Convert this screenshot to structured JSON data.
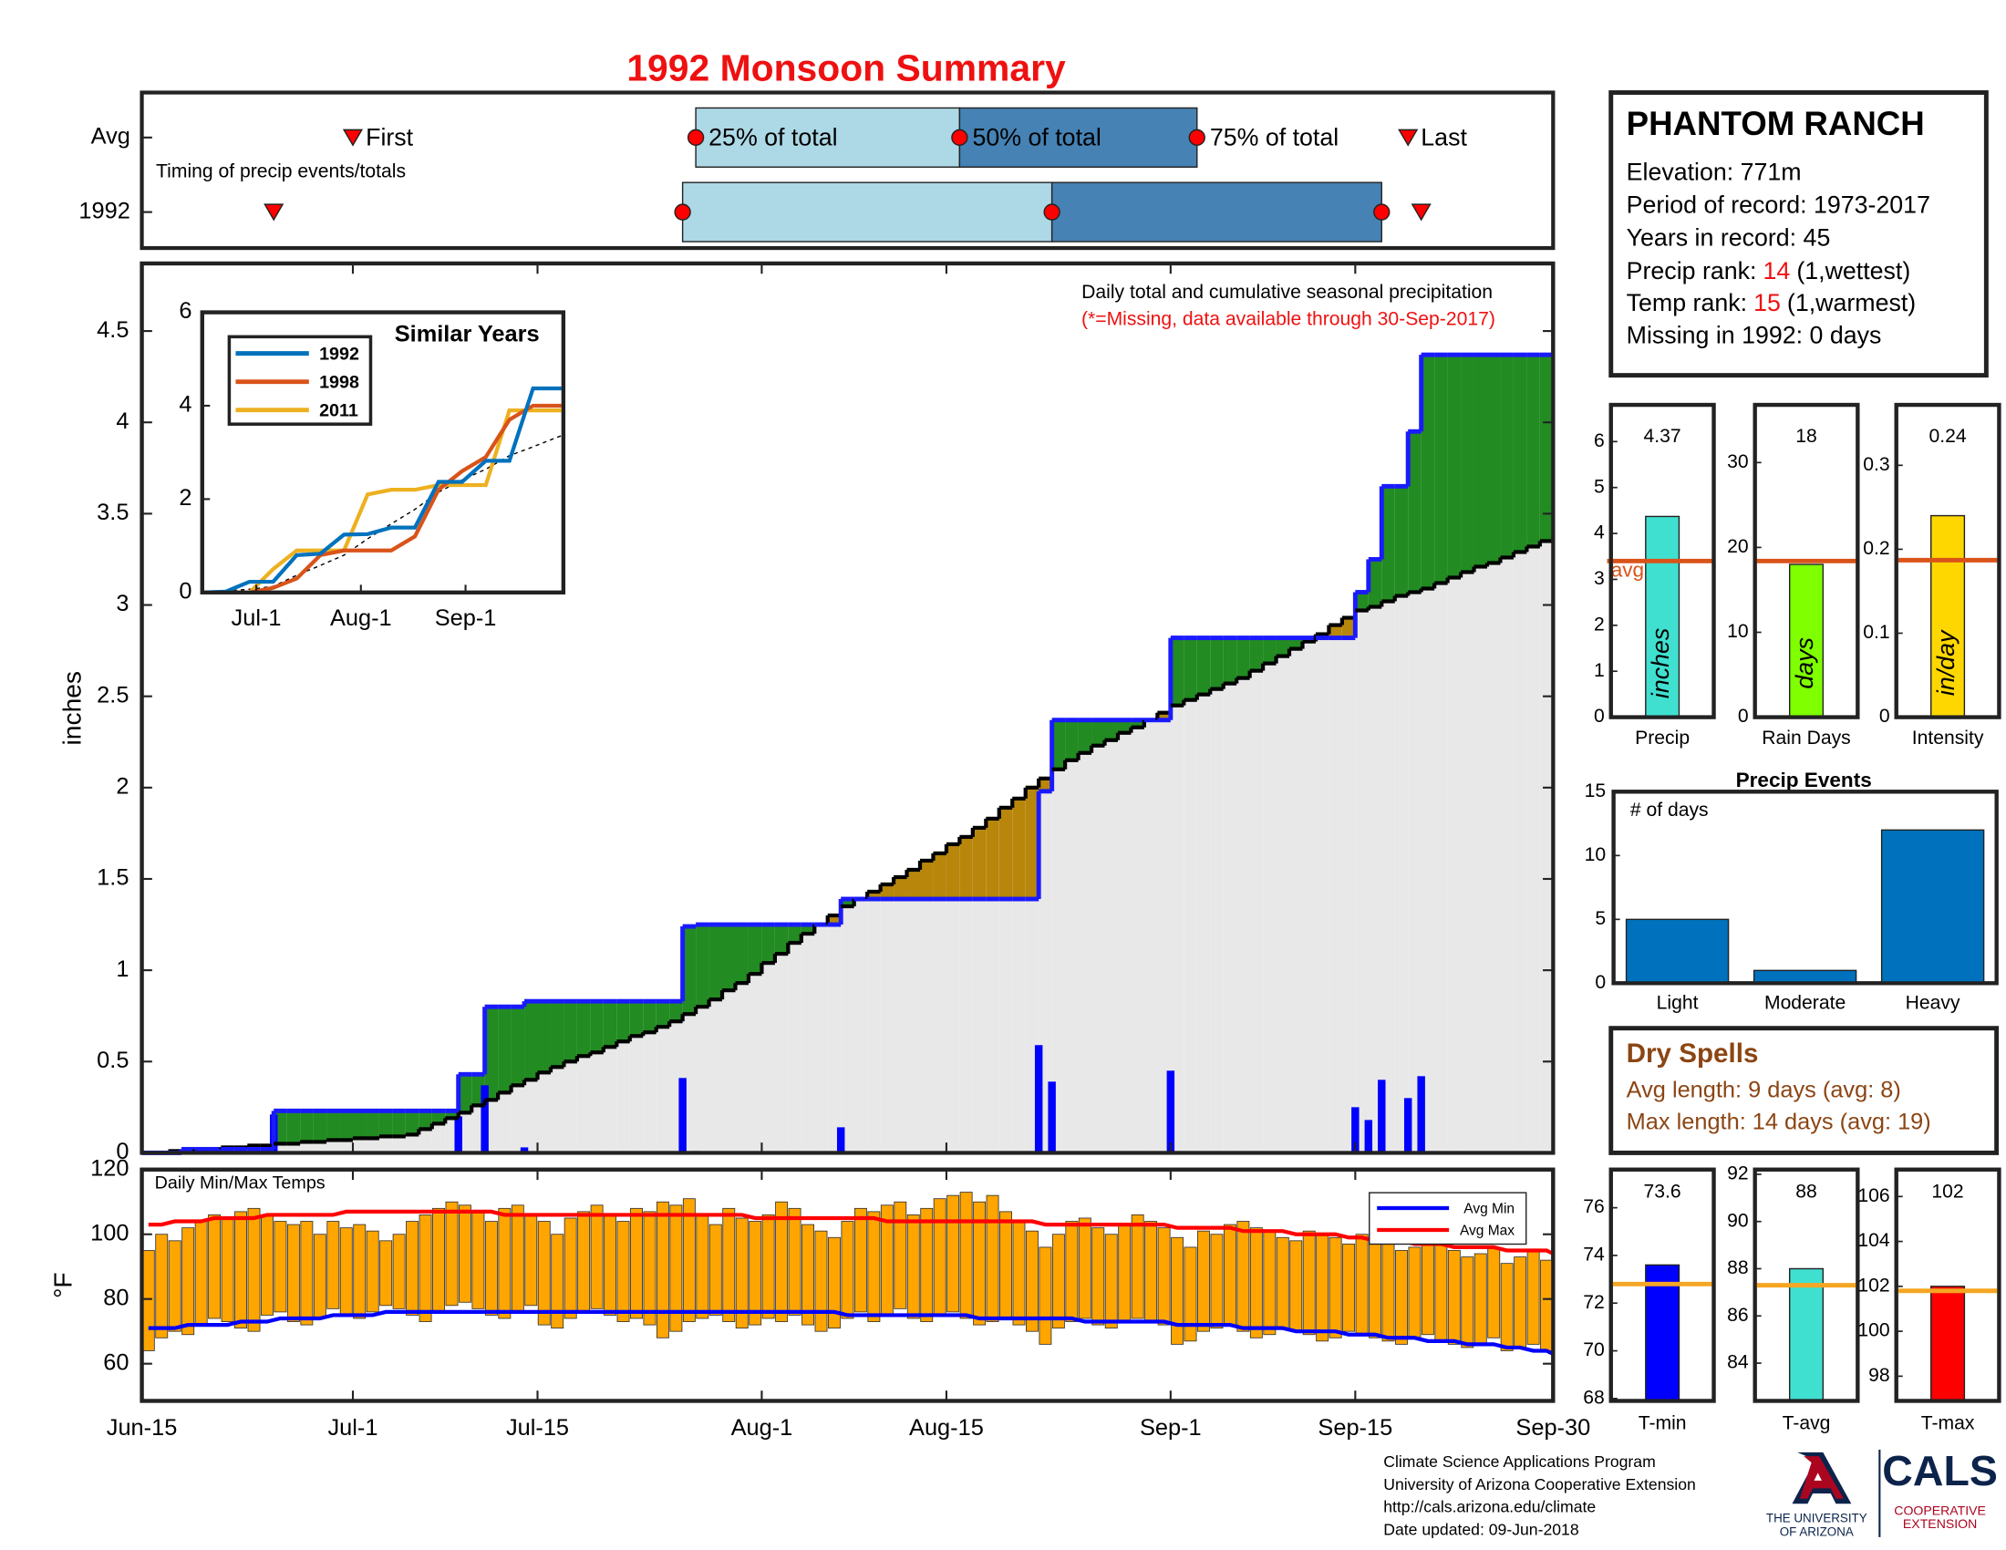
{
  "title": "1992 Monsoon Summary",
  "chart_data": [
    {
      "type": "timing",
      "note": "Timing of precip events/totals",
      "rows": [
        "Avg",
        "1992"
      ],
      "markers": [
        "First",
        "25% of total",
        "50% of total",
        "75% of total",
        "Last"
      ],
      "dates": [
        [
          "Jul-1",
          "Jul-27",
          "Aug-16",
          "Sep-3",
          "Sep-19"
        ],
        [
          "Jun-25",
          "Jul-26",
          "Aug-23",
          "Sep-17",
          "Sep-20"
        ]
      ],
      "colors": [
        "#add8e6",
        "#4682b4"
      ],
      "marker_color": "#ff0000"
    },
    {
      "type": "step-area",
      "ylabel": "inches",
      "notes": [
        "Daily total and cumulative seasonal precipitation",
        "(*=Missing, data available through 30-Sep-2017)"
      ],
      "x": [
        "Jun-15",
        "Jun-16",
        "Jun-17",
        "Jun-18",
        "Jun-19",
        "Jun-20",
        "Jun-21",
        "Jun-22",
        "Jun-23",
        "Jun-24",
        "Jun-25",
        "Jun-26",
        "Jun-27",
        "Jun-28",
        "Jun-29",
        "Jun-30",
        "Jul-1",
        "Jul-2",
        "Jul-3",
        "Jul-4",
        "Jul-5",
        "Jul-6",
        "Jul-7",
        "Jul-8",
        "Jul-9",
        "Jul-10",
        "Jul-11",
        "Jul-12",
        "Jul-13",
        "Jul-14",
        "Jul-15",
        "Jul-16",
        "Jul-17",
        "Jul-18",
        "Jul-19",
        "Jul-20",
        "Jul-21",
        "Jul-22",
        "Jul-23",
        "Jul-24",
        "Jul-25",
        "Jul-26",
        "Jul-27",
        "Jul-28",
        "Jul-29",
        "Jul-30",
        "Jul-31",
        "Aug-1",
        "Aug-2",
        "Aug-3",
        "Aug-4",
        "Aug-5",
        "Aug-6",
        "Aug-7",
        "Aug-8",
        "Aug-9",
        "Aug-10",
        "Aug-11",
        "Aug-12",
        "Aug-13",
        "Aug-14",
        "Aug-15",
        "Aug-16",
        "Aug-17",
        "Aug-18",
        "Aug-19",
        "Aug-20",
        "Aug-21",
        "Aug-22",
        "Aug-23",
        "Aug-24",
        "Aug-25",
        "Aug-26",
        "Aug-27",
        "Aug-28",
        "Aug-29",
        "Aug-30",
        "Aug-31",
        "Sep-1",
        "Sep-2",
        "Sep-3",
        "Sep-4",
        "Sep-5",
        "Sep-6",
        "Sep-7",
        "Sep-8",
        "Sep-9",
        "Sep-10",
        "Sep-11",
        "Sep-12",
        "Sep-13",
        "Sep-14",
        "Sep-15",
        "Sep-16",
        "Sep-17",
        "Sep-18",
        "Sep-19",
        "Sep-20",
        "Sep-21",
        "Sep-22",
        "Sep-23",
        "Sep-24",
        "Sep-25",
        "Sep-26",
        "Sep-27",
        "Sep-28",
        "Sep-29",
        "Sep-30"
      ],
      "daily": {
        "color": "#0000ff",
        "values": [
          0,
          0,
          0,
          0.02,
          0,
          0,
          0,
          0,
          0,
          0,
          0.21,
          0,
          0,
          0,
          0,
          0,
          0,
          0,
          0,
          0,
          0,
          0,
          0,
          0,
          0.2,
          0,
          0.37,
          0,
          0,
          0.03,
          0,
          0,
          0,
          0,
          0,
          0,
          0,
          0,
          0,
          0,
          0,
          0.41,
          0.01,
          0,
          0,
          0,
          0,
          0,
          0,
          0,
          0,
          0,
          0,
          0.14,
          0,
          0,
          0,
          0,
          0,
          0,
          0,
          0,
          0,
          0,
          0,
          0,
          0,
          0,
          0.59,
          0.39,
          0,
          0,
          0,
          0,
          0,
          0,
          0,
          0,
          0.45,
          0,
          0,
          0,
          0,
          0,
          0,
          0,
          0,
          0,
          0,
          0,
          0,
          0,
          0.25,
          0.18,
          0.4,
          0,
          0.3,
          0.42,
          0,
          0,
          0,
          0,
          0,
          0,
          0,
          0,
          0,
          0
        ]
      },
      "average": {
        "color": "#000000",
        "values": [
          0,
          0,
          0.01,
          0.01,
          0.02,
          0.02,
          0.03,
          0.03,
          0.04,
          0.04,
          0.05,
          0.05,
          0.06,
          0.06,
          0.07,
          0.07,
          0.08,
          0.08,
          0.09,
          0.09,
          0.1,
          0.13,
          0.16,
          0.19,
          0.22,
          0.26,
          0.29,
          0.33,
          0.37,
          0.4,
          0.44,
          0.47,
          0.5,
          0.53,
          0.55,
          0.58,
          0.61,
          0.64,
          0.66,
          0.69,
          0.72,
          0.76,
          0.8,
          0.84,
          0.89,
          0.93,
          0.98,
          1.04,
          1.09,
          1.15,
          1.2,
          1.25,
          1.3,
          1.35,
          1.39,
          1.43,
          1.47,
          1.51,
          1.55,
          1.6,
          1.64,
          1.69,
          1.73,
          1.78,
          1.83,
          1.89,
          1.94,
          2,
          2.05,
          2.1,
          2.15,
          2.19,
          2.23,
          2.26,
          2.3,
          2.33,
          2.37,
          2.41,
          2.45,
          2.48,
          2.51,
          2.54,
          2.57,
          2.6,
          2.64,
          2.68,
          2.72,
          2.76,
          2.8,
          2.84,
          2.89,
          2.93,
          2.97,
          2.99,
          3.02,
          3.05,
          3.07,
          3.09,
          3.12,
          3.15,
          3.18,
          3.21,
          3.23,
          3.26,
          3.29,
          3.32,
          3.35,
          3.37
        ]
      },
      "cumulative_color": "#1a1aff",
      "above_color": "#228b22",
      "below_color": "#b8860b",
      "base_color": "#e8e8e8",
      "ylim": [
        0,
        4.87
      ],
      "yticks": [
        0,
        0.5,
        1,
        1.5,
        2,
        2.5,
        3,
        3.5,
        4,
        4.5
      ],
      "xticks": [
        "Jun-15",
        "Jul-1",
        "Jul-15",
        "Aug-1",
        "Aug-15",
        "Sep-1",
        "Sep-15",
        "Sep-30"
      ],
      "inset": {
        "type": "line",
        "title": "Similar Years",
        "x": [
          "Jun-15",
          "Jun-22",
          "Jun-29",
          "Jul-6",
          "Jul-13",
          "Jul-20",
          "Jul-27",
          "Aug-3",
          "Aug-10",
          "Aug-17",
          "Aug-24",
          "Aug-31",
          "Sep-7",
          "Sep-14",
          "Sep-21",
          "Sep-28",
          "Sep-30"
        ],
        "series": [
          {
            "name": "1992",
            "color": "#0072bd",
            "values": [
              0,
              0.02,
              0.23,
              0.23,
              0.8,
              0.83,
              1.24,
              1.25,
              1.39,
              1.39,
              2.37,
              2.37,
              2.82,
              2.82,
              4.37,
              4.37,
              4.37
            ]
          },
          {
            "name": "1998",
            "color": "#d95319",
            "values": [
              0,
              0,
              0,
              0.1,
              0.3,
              0.8,
              0.9,
              0.9,
              0.9,
              1.2,
              2.2,
              2.6,
              2.9,
              3.7,
              4,
              4,
              4
            ]
          },
          {
            "name": "2011",
            "color": "#edb120",
            "values": [
              0,
              0,
              0,
              0.5,
              0.9,
              0.9,
              0.9,
              2.1,
              2.2,
              2.2,
              2.3,
              2.3,
              2.3,
              3.9,
              3.9,
              3.9,
              3.9
            ]
          }
        ],
        "reference": {
          "color": "#000000",
          "values": [
            0,
            0.03,
            0.07,
            0.13,
            0.37,
            0.58,
            0.8,
            1.15,
            1.47,
            1.78,
            2.15,
            2.41,
            2.64,
            2.93,
            3.12,
            3.32,
            3.37
          ]
        },
        "ylim": [
          0,
          6
        ],
        "yticks": [
          0,
          2,
          4,
          6
        ],
        "xticks": [
          "Jul-1",
          "Aug-1",
          "Sep-1"
        ]
      }
    },
    {
      "type": "range-bar",
      "note": "Daily Min/Max Temps",
      "ylabel": "°F",
      "bar_color": "#ffa500",
      "max": {
        "values": [
          95,
          100,
          98,
          102,
          104,
          106,
          105,
          107,
          108,
          106,
          104,
          103,
          104,
          100,
          104,
          102,
          103,
          101,
          98,
          100,
          104,
          106,
          108,
          110,
          109,
          107,
          104,
          108,
          109,
          106,
          104,
          100,
          105,
          107,
          109,
          106,
          104,
          108,
          107,
          110,
          109,
          111,
          106,
          103,
          108,
          105,
          104,
          106,
          110,
          108,
          103,
          101,
          99,
          104,
          108,
          107,
          109,
          110,
          106,
          108,
          111,
          112,
          113,
          110,
          112,
          107,
          104,
          101,
          96,
          100,
          104,
          105,
          102,
          100,
          103,
          106,
          104,
          102,
          99,
          96,
          101,
          100,
          103,
          104,
          102,
          101,
          99,
          98,
          101,
          100,
          99,
          97,
          100,
          98,
          97,
          95,
          96,
          99,
          97,
          95,
          93,
          94,
          96,
          91,
          93,
          95,
          92,
          94
        ]
      },
      "min": {
        "values": [
          64,
          68,
          70,
          69,
          72,
          74,
          73,
          71,
          70,
          75,
          76,
          73,
          72,
          74,
          77,
          75,
          74,
          76,
          78,
          77,
          75,
          73,
          76,
          78,
          79,
          77,
          75,
          74,
          76,
          78,
          72,
          71,
          74,
          76,
          77,
          75,
          73,
          74,
          72,
          68,
          70,
          73,
          74,
          75,
          73,
          71,
          72,
          74,
          73,
          75,
          72,
          70,
          71,
          74,
          76,
          73,
          75,
          77,
          74,
          73,
          75,
          76,
          74,
          72,
          73,
          74,
          72,
          70,
          66,
          71,
          73,
          74,
          72,
          71,
          73,
          74,
          73,
          72,
          66,
          67,
          70,
          71,
          72,
          70,
          68,
          69,
          71,
          70,
          69,
          67,
          68,
          70,
          69,
          68,
          67,
          66,
          68,
          69,
          67,
          66,
          65,
          66,
          68,
          64,
          65,
          66,
          64,
          67
        ]
      },
      "series": [
        {
          "name": "Avg Min",
          "color": "#0000ff",
          "values": [
            71,
            71,
            71,
            72,
            72,
            72,
            72,
            73,
            73,
            73,
            74,
            74,
            74,
            74,
            75,
            75,
            75,
            75,
            76,
            76,
            76,
            76,
            76,
            76,
            76,
            76,
            76,
            76,
            76,
            76,
            76,
            76,
            76,
            76,
            76,
            76,
            76,
            76,
            76,
            76,
            76,
            76,
            76,
            76,
            76,
            76,
            76,
            76,
            76,
            76,
            76,
            76,
            76,
            75,
            75,
            75,
            75,
            75,
            75,
            75,
            75,
            75,
            75,
            74,
            74,
            74,
            74,
            74,
            74,
            74,
            74,
            73,
            73,
            73,
            73,
            73,
            73,
            73,
            72,
            72,
            72,
            72,
            72,
            71,
            71,
            71,
            71,
            70,
            70,
            70,
            70,
            69,
            69,
            69,
            68,
            68,
            68,
            67,
            67,
            67,
            66,
            66,
            66,
            65,
            65,
            64,
            64,
            63
          ]
        },
        {
          "name": "Avg Max",
          "color": "#ff0000",
          "values": [
            103,
            103,
            104,
            104,
            104,
            105,
            105,
            105,
            105,
            106,
            106,
            106,
            106,
            106,
            106,
            107,
            107,
            107,
            107,
            107,
            107,
            107,
            107,
            107,
            107,
            107,
            107,
            106,
            106,
            106,
            106,
            106,
            106,
            106,
            106,
            106,
            106,
            106,
            106,
            106,
            106,
            106,
            106,
            106,
            106,
            106,
            105,
            105,
            105,
            105,
            105,
            105,
            105,
            105,
            105,
            105,
            104,
            104,
            104,
            104,
            104,
            104,
            104,
            104,
            104,
            104,
            104,
            104,
            103,
            103,
            103,
            103,
            103,
            103,
            103,
            103,
            103,
            103,
            102,
            102,
            102,
            102,
            102,
            101,
            101,
            101,
            101,
            100,
            100,
            100,
            100,
            99,
            99,
            98,
            98,
            98,
            97,
            97,
            97,
            96,
            96,
            96,
            96,
            95,
            95,
            95,
            95,
            94
          ]
        }
      ],
      "ylim": [
        48.5,
        120
      ],
      "yticks": [
        60,
        80,
        100,
        120
      ]
    },
    {
      "type": "bar",
      "categories": [
        "Precip"
      ],
      "values": [
        4.37
      ],
      "bar_label": "inches",
      "avg": 3.4,
      "avg_label": "avg",
      "avg_color": "#d95319",
      "color": "#40e0d0",
      "ylim": [
        0,
        6.8
      ],
      "yticks": [
        0,
        1,
        2,
        3,
        4,
        5,
        6
      ]
    },
    {
      "type": "bar",
      "categories": [
        "Rain Days"
      ],
      "values": [
        18
      ],
      "bar_label": "days",
      "avg": 18.4,
      "avg_color": "#d95319",
      "color": "#7fff00",
      "ylim": [
        0,
        36.8
      ],
      "yticks": [
        0,
        10,
        20,
        30
      ]
    },
    {
      "type": "bar",
      "categories": [
        "Intensity"
      ],
      "values": [
        0.24
      ],
      "bar_label": "in/day",
      "avg": 0.187,
      "avg_color": "#d95319",
      "color": "#ffd700",
      "ylim": [
        0,
        0.372
      ],
      "yticks": [
        0,
        0.1,
        0.2,
        0.3
      ]
    },
    {
      "type": "bar",
      "title": "Precip Events",
      "ylabel": "# of days",
      "categories": [
        "Light",
        "Moderate",
        "Heavy"
      ],
      "values": [
        5,
        1,
        12
      ],
      "color": "#0072bd",
      "ylim": [
        0,
        15
      ],
      "yticks": [
        0,
        5,
        10,
        15
      ]
    },
    {
      "type": "bar",
      "categories": [
        "T-min"
      ],
      "values": [
        73.6
      ],
      "avg": 72.8,
      "avg_color": "#f5a623",
      "color": "#0000ff",
      "ylim": [
        67.9,
        77.6
      ],
      "yticks": [
        68,
        70,
        72,
        74,
        76
      ]
    },
    {
      "type": "bar",
      "categories": [
        "T-avg"
      ],
      "values": [
        88
      ],
      "avg": 87.3,
      "avg_color": "#f5a623",
      "color": "#40e0d0",
      "ylim": [
        82.4,
        92.2
      ],
      "yticks": [
        84,
        86,
        88,
        90,
        92
      ]
    },
    {
      "type": "bar",
      "categories": [
        "T-max"
      ],
      "values": [
        102
      ],
      "avg": 101.8,
      "avg_color": "#f5a623",
      "color": "#ff0000",
      "ylim": [
        96.9,
        107.2
      ],
      "yticks": [
        98,
        100,
        102,
        104,
        106
      ]
    }
  ],
  "station": {
    "name": "PHANTOM RANCH",
    "lines": [
      "Elevation: 771m",
      "Period of record: 1973-2017",
      "Years in record: 45"
    ],
    "ranks": [
      {
        "label": "Precip rank:",
        "value": 14,
        "note": "(1,wettest)"
      },
      {
        "label": "Temp rank:",
        "value": 15,
        "note": "(1,warmest)"
      }
    ],
    "missing": "Missing in 1992: 0 days"
  },
  "dry_spells": {
    "title": "Dry Spells",
    "lines": [
      "Avg length: 9 days (avg: 8)",
      "Max length: 14 days (avg: 19)"
    ]
  },
  "footer": {
    "lines": [
      "Climate Science Applications Program",
      "University of Arizona Cooperative Extension",
      "http://cals.arizona.edu/climate",
      " Date updated: 09-Jun-2018"
    ],
    "university": [
      "THE UNIVERSITY",
      "OF ARIZONA"
    ],
    "cals": "CALS",
    "extension": [
      "COOPERATIVE",
      "EXTENSION"
    ]
  }
}
